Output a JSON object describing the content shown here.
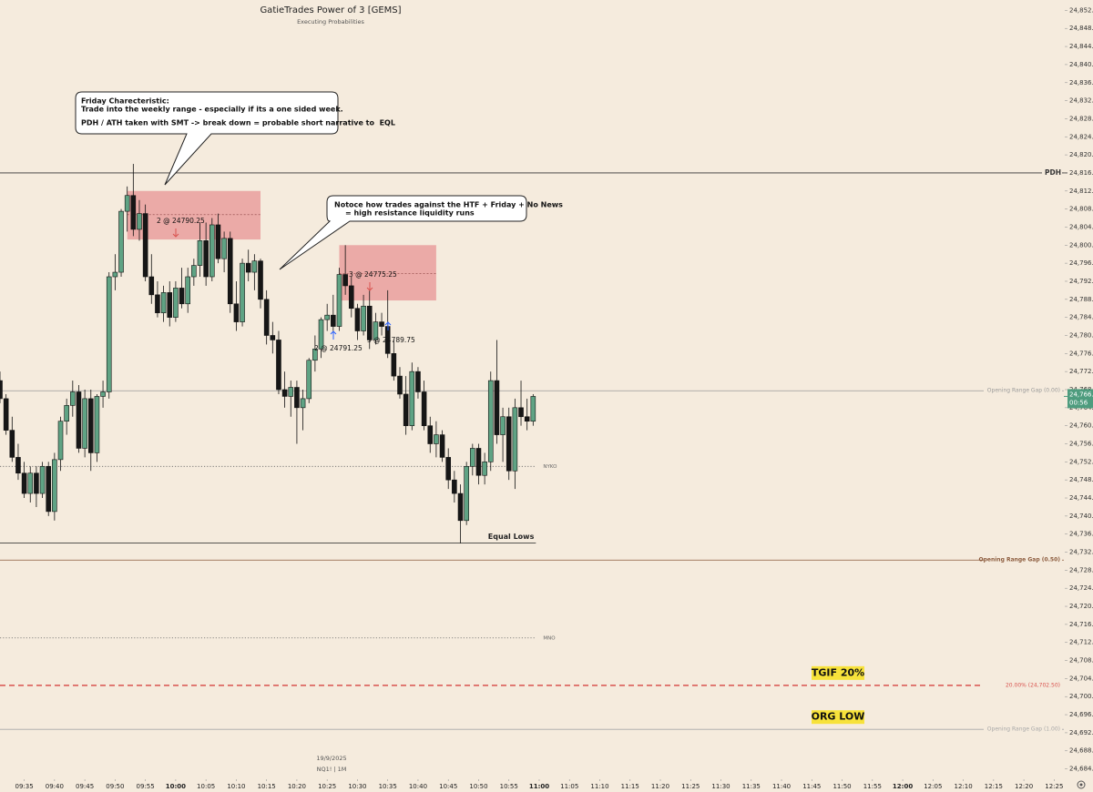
{
  "chart_data": {
    "type": "candlestick",
    "title": "GatieTrades Power of 3 [GEMS]",
    "subtitle": "Executing Probabilities",
    "date": "19/9/2025",
    "symbol": "NQ1! | 1M",
    "up_color": "#5fa384",
    "down_color": "#161616",
    "x": [
      571,
      572,
      573,
      574,
      575,
      576,
      577,
      578,
      579,
      580,
      581,
      582,
      583,
      584,
      585,
      586,
      587,
      588,
      589,
      590,
      591,
      592,
      593,
      594,
      595,
      596,
      597,
      598,
      599,
      600,
      601,
      602,
      603,
      604,
      605,
      606,
      607,
      608,
      609,
      610,
      611,
      612,
      613,
      614,
      615,
      616,
      617,
      618,
      619,
      620,
      621,
      622,
      623,
      624,
      625,
      626,
      627,
      628,
      629,
      630,
      631,
      632,
      633,
      634,
      635,
      636,
      637,
      638,
      639,
      640,
      641,
      642,
      643,
      644,
      645,
      646,
      647,
      648,
      649,
      650,
      651,
      652,
      653,
      654,
      655,
      656,
      657,
      658,
      659
    ],
    "open": [
      24770,
      24766,
      24759,
      24753,
      24749.5,
      24745,
      24749.5,
      24745,
      24751,
      24741,
      24752.5,
      24761,
      24764.5,
      24767.5,
      24755,
      24766,
      24754,
      24766.5,
      24767.5,
      24793,
      24794,
      24807.5,
      24811,
      24803.5,
      24807,
      24793,
      24789,
      24785,
      24789.5,
      24784,
      24790.5,
      24787,
      24793,
      24795.5,
      24801,
      24793,
      24804.5,
      24797,
      24801.5,
      24787,
      24783,
      24796,
      24794,
      24796.5,
      24788,
      24780,
      24779,
      24768,
      24766.5,
      24768.5,
      24764,
      24766,
      24774.5,
      24777,
      24783.5,
      24784.5,
      24782,
      24793.5,
      24791,
      24786,
      24781,
      24786.5,
      24779,
      24783,
      24782,
      24776,
      24771,
      24767,
      24760,
      24772,
      24767.5,
      24760,
      24756,
      24758,
      24753,
      24748,
      24745,
      24739,
      24751,
      24755,
      24749,
      24752,
      24770,
      24758,
      24762,
      24750,
      24764,
      24762,
      24761
    ],
    "high": [
      24772,
      24767,
      24762,
      24756,
      24752,
      24751,
      24751,
      24752,
      24752,
      24754,
      24762,
      24766,
      24770,
      24769,
      24768,
      24768,
      24767,
      24770,
      24794,
      24798,
      24808,
      24813,
      24818,
      24810,
      24809,
      24798,
      24792,
      24791,
      24792,
      24792,
      24795,
      24795,
      24797,
      24805,
      24805,
      24806,
      24807,
      24803,
      24803,
      24792,
      24797,
      24799,
      24798,
      24797,
      24790,
      24783,
      24781,
      24772,
      24770,
      24770,
      24768,
      24775,
      24780,
      24784,
      24787,
      24789,
      24795,
      24800,
      24793,
      24787,
      24789,
      24790,
      24785,
      24785,
      24790,
      24779,
      24773,
      24771,
      24774,
      24773,
      24770,
      24762,
      24761,
      24759,
      24755,
      24750,
      24747,
      24752,
      24756,
      24756,
      24754,
      24772,
      24779,
      24764,
      24764,
      24766,
      24770,
      24766,
      24767
    ],
    "low": [
      24765,
      24758,
      24752,
      24748,
      24744,
      24743,
      24742,
      24744,
      24740,
      24739,
      24750,
      24758,
      24762,
      24754,
      24753,
      24750,
      24752,
      24764,
      24766,
      24790,
      24793,
      24803,
      24802,
      24801,
      24792,
      24787,
      24784,
      24783,
      24782,
      24783,
      24786,
      24785,
      24791,
      24793,
      24791,
      24792,
      24796,
      24794,
      24785,
      24781,
      24782,
      24792,
      24790,
      24786,
      24778,
      24776,
      24767,
      24764,
      24762,
      24756,
      24759,
      24765,
      24772,
      24775,
      24781,
      24781,
      24781,
      24789,
      24784,
      24779,
      24780,
      24777,
      24778,
      24780,
      24775,
      24770,
      24766,
      24758,
      24759,
      24766,
      24759,
      24754,
      24753,
      24752,
      24746,
      24743,
      24734,
      24738,
      24749,
      24747,
      24747,
      24750,
      24756,
      24752,
      24748,
      24746,
      24760,
      24759,
      24760
    ],
    "close": [
      24766,
      24759,
      24753,
      24749.5,
      24745,
      24749.5,
      24745,
      24751,
      24741,
      24752.5,
      24761,
      24764.5,
      24767.5,
      24755,
      24766,
      24754,
      24766.5,
      24767.5,
      24793,
      24794,
      24807.5,
      24811,
      24803.5,
      24807,
      24793,
      24789,
      24785,
      24789.5,
      24784,
      24790.5,
      24787,
      24793,
      24795.5,
      24801,
      24793,
      24804.5,
      24797,
      24801.5,
      24787,
      24783,
      24796,
      24794,
      24796.5,
      24788,
      24780,
      24779,
      24768,
      24766.5,
      24768.5,
      24764,
      24766,
      24774.5,
      24777,
      24783.5,
      24784.5,
      24782,
      24793.5,
      24791,
      24786,
      24781,
      24786.5,
      24779,
      24783,
      24782,
      24776,
      24771,
      24767,
      24760,
      24772,
      24767.5,
      24760,
      24756,
      24758,
      24753,
      24748,
      24745,
      24739,
      24751,
      24755,
      24749,
      24752,
      24770,
      24758,
      24762,
      24750,
      24764,
      24762,
      24761,
      24766.5
    ],
    "xlim": [
      571,
      746.6
    ],
    "xticks": [
      {
        "value": 575,
        "label": "09:35"
      },
      {
        "value": 580,
        "label": "09:40"
      },
      {
        "value": 585,
        "label": "09:45"
      },
      {
        "value": 590,
        "label": "09:50"
      },
      {
        "value": 595,
        "label": "09:55"
      },
      {
        "value": 600,
        "label": "10:00"
      },
      {
        "value": 605,
        "label": "10:05"
      },
      {
        "value": 610,
        "label": "10:10"
      },
      {
        "value": 615,
        "label": "10:15"
      },
      {
        "value": 620,
        "label": "10:20"
      },
      {
        "value": 625,
        "label": "10:25"
      },
      {
        "value": 630,
        "label": "10:30"
      },
      {
        "value": 635,
        "label": "10:35"
      },
      {
        "value": 640,
        "label": "10:40"
      },
      {
        "value": 645,
        "label": "10:45"
      },
      {
        "value": 650,
        "label": "10:50"
      },
      {
        "value": 655,
        "label": "10:55"
      },
      {
        "value": 660,
        "label": "11:00"
      },
      {
        "value": 665,
        "label": "11:05"
      },
      {
        "value": 670,
        "label": "11:10"
      },
      {
        "value": 675,
        "label": "11:15"
      },
      {
        "value": 680,
        "label": "11:20"
      },
      {
        "value": 685,
        "label": "11:25"
      },
      {
        "value": 690,
        "label": "11:30"
      },
      {
        "value": 695,
        "label": "11:35"
      },
      {
        "value": 700,
        "label": "11:40"
      },
      {
        "value": 705,
        "label": "11:45"
      },
      {
        "value": 710,
        "label": "11:50"
      },
      {
        "value": 715,
        "label": "11:55"
      },
      {
        "value": 720,
        "label": "12:00"
      },
      {
        "value": 725,
        "label": "12:05"
      },
      {
        "value": 730,
        "label": "12:10"
      },
      {
        "value": 735,
        "label": "12:15"
      },
      {
        "value": 740,
        "label": "12:20"
      },
      {
        "value": 745,
        "label": "12:25"
      }
    ],
    "ylim": [
      24681.9,
      24854.3
    ],
    "yticks": [
      {
        "value": 24684,
        "label": "24,684.00"
      },
      {
        "value": 24688,
        "label": "24,688.00"
      },
      {
        "value": 24692,
        "label": "24,692.00"
      },
      {
        "value": 24696,
        "label": "24,696.00"
      },
      {
        "value": 24700,
        "label": "24,700.00"
      },
      {
        "value": 24704,
        "label": "24,704.00"
      },
      {
        "value": 24708,
        "label": "24,708.00"
      },
      {
        "value": 24712,
        "label": "24,712.00"
      },
      {
        "value": 24716,
        "label": "24,716.00"
      },
      {
        "value": 24720,
        "label": "24,720.00"
      },
      {
        "value": 24724,
        "label": "24,724.00"
      },
      {
        "value": 24728,
        "label": "24,728.00"
      },
      {
        "value": 24732,
        "label": "24,732.00"
      },
      {
        "value": 24736,
        "label": "24,736.00"
      },
      {
        "value": 24740,
        "label": "24,740.00"
      },
      {
        "value": 24744,
        "label": "24,744.00"
      },
      {
        "value": 24748,
        "label": "24,748.00"
      },
      {
        "value": 24752,
        "label": "24,752.00"
      },
      {
        "value": 24756,
        "label": "24,756.00"
      },
      {
        "value": 24760,
        "label": "24,760.00"
      },
      {
        "value": 24764,
        "label": "24,764.00"
      },
      {
        "value": 24768,
        "label": "24,768.00"
      },
      {
        "value": 24772,
        "label": "24,772.00"
      },
      {
        "value": 24776,
        "label": "24,776.00"
      },
      {
        "value": 24780,
        "label": "24,780.00"
      },
      {
        "value": 24784,
        "label": "24,784.00"
      },
      {
        "value": 24788,
        "label": "24,788.00"
      },
      {
        "value": 24792,
        "label": "24,792.00"
      },
      {
        "value": 24796,
        "label": "24,796.00"
      },
      {
        "value": 24800,
        "label": "24,800.00"
      },
      {
        "value": 24804,
        "label": "24,804.00"
      },
      {
        "value": 24808,
        "label": "24,808.00"
      },
      {
        "value": 24812,
        "label": "24,812.00"
      },
      {
        "value": 24816,
        "label": "24,816.00"
      },
      {
        "value": 24820,
        "label": "24,820.00"
      },
      {
        "value": 24824,
        "label": "24,824.00"
      },
      {
        "value": 24828,
        "label": "24,828.00"
      },
      {
        "value": 24832,
        "label": "24,832.00"
      },
      {
        "value": 24836,
        "label": "24,836.00"
      },
      {
        "value": 24840,
        "label": "24,840.00"
      },
      {
        "value": 24844,
        "label": "24,844.00"
      },
      {
        "value": 24848,
        "label": "24,848.00"
      },
      {
        "value": 24852,
        "label": "24,852.00"
      }
    ],
    "grid": false,
    "last_price": {
      "value": 24766.5,
      "label": "24,766.5",
      "countdown": "00:56",
      "color": "#4e9c7e"
    },
    "levels": [
      {
        "label": "PDH",
        "value": 24816,
        "color": "#333333",
        "style": "solid",
        "span": "full",
        "label_at": "axis",
        "bold": true
      },
      {
        "label": "Opening Range Gap (0.00)",
        "value": 24767.75,
        "color": "#9a9a9a",
        "style": "solid",
        "span": "full",
        "label_at": "right",
        "bold": false
      },
      {
        "label": "NYKO",
        "value": 24751,
        "color": "#666666",
        "style": "dotted",
        "span": "session",
        "label_at": "end",
        "bold": false
      },
      {
        "label": "Equal Lows",
        "value": 24734,
        "color": "#222222",
        "style": "solid",
        "span": "session",
        "label_at": "above-end",
        "bold": true
      },
      {
        "label": "Opening Range Gap (0.50)",
        "value": 24730.25,
        "color": "#8b5a3c",
        "style": "solid",
        "span": "full",
        "label_at": "right",
        "bold": true
      },
      {
        "label": "MNO",
        "value": 24713,
        "color": "#666666",
        "style": "dotted",
        "span": "session",
        "label_at": "end",
        "bold": false
      },
      {
        "label": "20.00% (24,702.50)",
        "value": 24702.5,
        "color": "#d9534f",
        "style": "dashed",
        "span": "full",
        "label_at": "right",
        "bold": false,
        "tag": "TGIF 20%"
      },
      {
        "label": "Opening Range Gap (1.00)",
        "value": 24692.75,
        "color": "#a8a8a8",
        "style": "solid",
        "span": "full",
        "label_at": "right",
        "bold": false,
        "tag": "ORG LOW"
      }
    ],
    "zones": [
      {
        "x0": 592,
        "x1": 614,
        "top": 24812,
        "bottom": 24801.25,
        "line": 24806.75
      },
      {
        "x0": 627,
        "x1": 643,
        "top": 24800,
        "bottom": 24787.75,
        "line": 24793.75
      }
    ],
    "trades": [
      {
        "label": "2 @ 24790.25",
        "direction": "down"
      },
      {
        "label": "3 @ 24775.25",
        "direction": "down"
      },
      {
        "label": "2 @ 24791.25",
        "direction": "up"
      },
      {
        "label": "3 @ 24789.75",
        "direction": "up"
      }
    ],
    "annotations": [
      {
        "lines": [
          "Friday Charecteristic:",
          "Trade into the weekly range - especially if its a one sided week.",
          "PDH / ATH taken with SMT -> break down = probable short narrative to  EQL"
        ]
      },
      {
        "lines": [
          "Notoce how trades against the HTF + Friday + No News",
          "= high resistance liquidity runs"
        ]
      }
    ]
  }
}
